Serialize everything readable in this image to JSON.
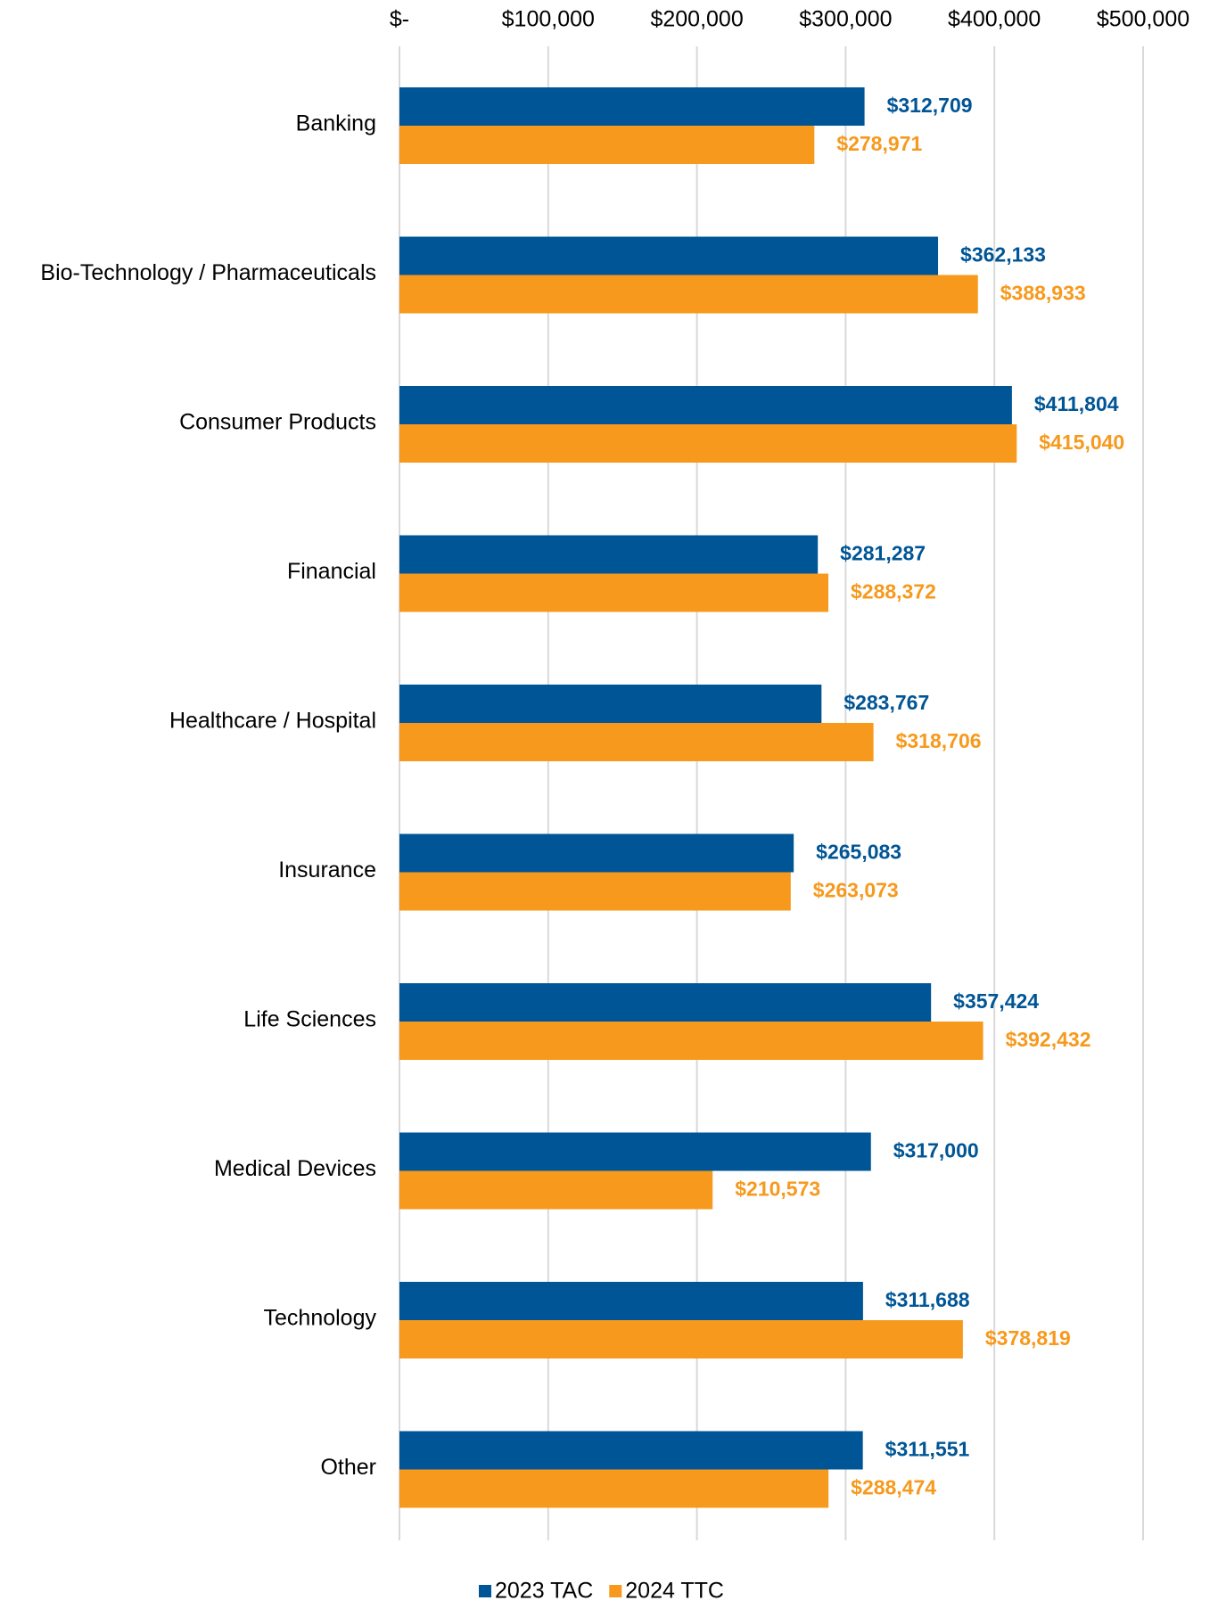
{
  "chart_data": {
    "type": "hbar",
    "categories": [
      "Banking",
      "Bio-Technology / Pharmaceuticals",
      "Consumer Products",
      "Financial",
      "Healthcare / Hospital",
      "Insurance",
      "Life Sciences",
      "Medical Devices",
      "Technology",
      "Other"
    ],
    "series": [
      {
        "name": "2023 TAC",
        "color": "#005596",
        "values": [
          312709,
          362133,
          411804,
          281287,
          283767,
          265083,
          357424,
          317000,
          311688,
          311551
        ],
        "value_labels": [
          "$312,709",
          "$362,133",
          "$411,804",
          "$281,287",
          "$283,767",
          "$265,083",
          "$357,424",
          "$317,000",
          "$311,688",
          "$311,551"
        ]
      },
      {
        "name": "2024 TTC",
        "color": "#f7991c",
        "values": [
          278971,
          388933,
          415040,
          288372,
          318706,
          263073,
          392432,
          210573,
          378819,
          288474
        ],
        "value_labels": [
          "$278,971",
          "$388,933",
          "$415,040",
          "$288,372",
          "$318,706",
          "$263,073",
          "$392,432",
          "$210,573",
          "$378,819",
          "$288,474"
        ]
      }
    ],
    "xlim": [
      0,
      500000
    ],
    "xticks": [
      {
        "value": 0,
        "label": "$-"
      },
      {
        "value": 100000,
        "label": "$100,000"
      },
      {
        "value": 200000,
        "label": "$200,000"
      },
      {
        "value": 300000,
        "label": "$300,000"
      },
      {
        "value": 400000,
        "label": "$400,000"
      },
      {
        "value": 500000,
        "label": "$500,000"
      }
    ],
    "grid": true,
    "legend": "bottom"
  }
}
